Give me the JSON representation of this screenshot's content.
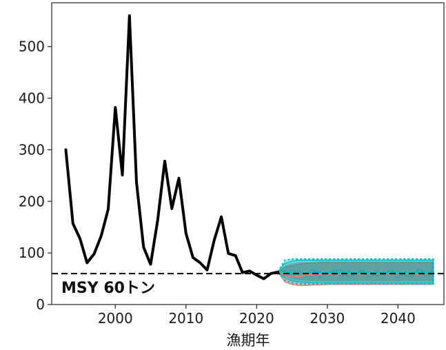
{
  "chart_data": {
    "type": "line",
    "title": "",
    "xlabel": "漁期年",
    "ylabel": "",
    "xlim": [
      1991,
      2046.5
    ],
    "ylim": [
      0,
      585
    ],
    "x_ticks": [
      2000,
      2010,
      2020,
      2030,
      2040
    ],
    "y_ticks": [
      0,
      100,
      200,
      300,
      400,
      500
    ],
    "x_tick_labels": [
      "2000",
      "2010",
      "2020",
      "2030",
      "2040"
    ],
    "y_tick_labels": [
      "0",
      "100",
      "200",
      "300",
      "400",
      "500"
    ],
    "grid": false,
    "reference_line": {
      "value": 60,
      "label": "MSY 60トン"
    },
    "series": [
      {
        "color": "#000000",
        "x": [
          1993,
          1994,
          1995,
          1996,
          1997,
          1998,
          1999,
          2000,
          2001,
          2002,
          2003,
          2004,
          2005,
          2006,
          2007,
          2008,
          2009,
          2010,
          2011,
          2012,
          2013,
          2014,
          2015,
          2016,
          2017,
          2018,
          2019,
          2020,
          2021,
          2022,
          2023
        ],
        "y": [
          300,
          157,
          128,
          81,
          98,
          133,
          185,
          382,
          251,
          560,
          237,
          111,
          78,
          164,
          278,
          186,
          245,
          138,
          91,
          81,
          67,
          125,
          170,
          99,
          95,
          62,
          65,
          57,
          50,
          60,
          63
        ]
      }
    ],
    "projections": [
      {
        "color": "#F8766D",
        "x": [
          2023,
          2024,
          2025,
          2026,
          2027,
          2028,
          2029,
          2030,
          2031,
          2032,
          2033,
          2034,
          2035,
          2036,
          2037,
          2038,
          2039,
          2040,
          2041,
          2042,
          2043,
          2044,
          2045
        ],
        "upper": [
          63,
          72,
          75,
          78,
          80,
          81,
          82,
          82,
          82,
          82,
          82,
          82,
          82,
          82,
          82,
          82,
          82,
          82,
          82,
          82,
          82,
          82,
          82
        ],
        "median": [
          63,
          57,
          54,
          55,
          57,
          58,
          59,
          59,
          60,
          60,
          60,
          60,
          60,
          60,
          60,
          60,
          60,
          60,
          60,
          60,
          60,
          60,
          60
        ],
        "lower": [
          63,
          44,
          39,
          37,
          37,
          38,
          38,
          39,
          39,
          39,
          39,
          39,
          39,
          39,
          39,
          39,
          39,
          39,
          39,
          39,
          39,
          39,
          39
        ]
      },
      {
        "color": "#00BFC4",
        "x": [
          2023,
          2024,
          2025,
          2026,
          2027,
          2028,
          2029,
          2030,
          2031,
          2032,
          2033,
          2034,
          2035,
          2036,
          2037,
          2038,
          2039,
          2040,
          2041,
          2042,
          2043,
          2044,
          2045
        ],
        "upper": [
          63,
          80,
          84,
          86,
          86,
          86,
          86,
          86,
          86,
          86,
          86,
          86,
          86,
          86,
          86,
          86,
          86,
          86,
          86,
          86,
          86,
          86,
          86
        ],
        "median": [
          63,
          62,
          61,
          60,
          61,
          61,
          62,
          62,
          62,
          62,
          62,
          62,
          62,
          62,
          62,
          62,
          62,
          62,
          62,
          62,
          62,
          62,
          62
        ],
        "lower": [
          63,
          52,
          46,
          44,
          43,
          42,
          42,
          42,
          42,
          42,
          42,
          42,
          42,
          42,
          42,
          42,
          42,
          42,
          42,
          42,
          42,
          42,
          42
        ],
        "outer_upper": [
          63,
          86,
          88,
          88,
          88,
          88,
          88,
          88,
          88,
          88,
          88,
          88,
          88,
          88,
          88,
          88,
          88,
          88,
          88,
          88,
          88,
          88,
          88
        ],
        "outer_lower": [
          63,
          47,
          42,
          40,
          40,
          40,
          40,
          40,
          40,
          40,
          40,
          40,
          40,
          40,
          40,
          40,
          40,
          40,
          40,
          40,
          40,
          40,
          40
        ],
        "sample_paths": [
          [
            63,
            66,
            58,
            66,
            54,
            64,
            63,
            59,
            66,
            55,
            64,
            62,
            66,
            51,
            65,
            57,
            67,
            59,
            57,
            53,
            68,
            62,
            66
          ],
          [
            63,
            60,
            64,
            52,
            66,
            57,
            63,
            68,
            52,
            62,
            59,
            66,
            56,
            67,
            61,
            71,
            55,
            60,
            66,
            58,
            57,
            61,
            63
          ],
          [
            63,
            55,
            67,
            59,
            61,
            68,
            52,
            62,
            65,
            67,
            53,
            59,
            66,
            61,
            55,
            62,
            66,
            52,
            64,
            60,
            68,
            55,
            61
          ]
        ]
      }
    ]
  }
}
